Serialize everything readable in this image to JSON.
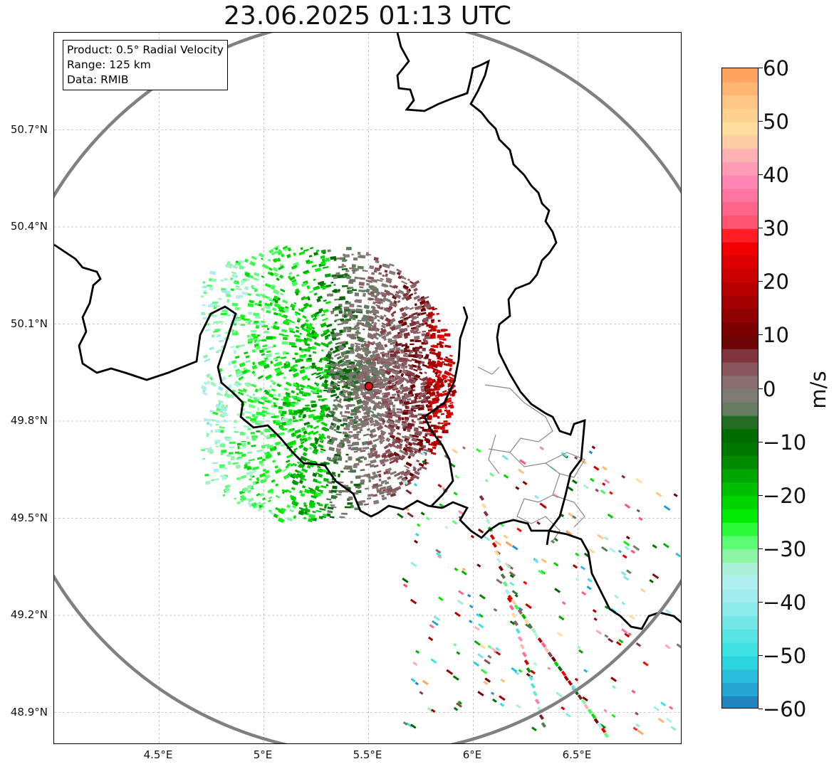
{
  "title": "23.06.2025 01:13 UTC",
  "info": {
    "product": "Product: 0.5° Radial Velocity",
    "range": "Range: 125 km",
    "source": "Data: RMIB"
  },
  "axes": {
    "lat_labels": [
      "50.7°N",
      "50.4°N",
      "50.1°N",
      "49.8°N",
      "49.5°N",
      "49.2°N",
      "48.9°N"
    ],
    "lon_labels": [
      "4.5°E",
      "5°E",
      "5.5°E",
      "6°E",
      "6.5°E"
    ]
  },
  "colorbar": {
    "unit": "m/s",
    "min": -60,
    "max": 60,
    "tick_labels": [
      "60",
      "50",
      "40",
      "30",
      "20",
      "10",
      "0",
      "−10",
      "−20",
      "−30",
      "−40",
      "−50",
      "−60"
    ],
    "tick_values": [
      60,
      50,
      40,
      30,
      20,
      10,
      0,
      -10,
      -20,
      -30,
      -40,
      -50,
      -60
    ],
    "stops": [
      {
        "v": -60,
        "c": "#1f77b4"
      },
      {
        "v": -55,
        "c": "#26b3d9"
      },
      {
        "v": -50,
        "c": "#2ee0e0"
      },
      {
        "v": -45,
        "c": "#66e6e6"
      },
      {
        "v": -40,
        "c": "#99ebeb"
      },
      {
        "v": -35,
        "c": "#b8f0f0"
      },
      {
        "v": -32,
        "c": "#99f2b3"
      },
      {
        "v": -28,
        "c": "#4dff66"
      },
      {
        "v": -24,
        "c": "#00ee00"
      },
      {
        "v": -18,
        "c": "#00b800"
      },
      {
        "v": -12,
        "c": "#007a00"
      },
      {
        "v": -7,
        "c": "#006400"
      },
      {
        "v": -5,
        "c": "#5a7d5a"
      },
      {
        "v": 0,
        "c": "#8a7a7a"
      },
      {
        "v": 5,
        "c": "#8a4a55"
      },
      {
        "v": 9,
        "c": "#6b0000"
      },
      {
        "v": 18,
        "c": "#b00000"
      },
      {
        "v": 28,
        "c": "#ff0000"
      },
      {
        "v": 30,
        "c": "#ff4d66"
      },
      {
        "v": 38,
        "c": "#ff80b3"
      },
      {
        "v": 44,
        "c": "#ffb3b3"
      },
      {
        "v": 48,
        "c": "#ffe0a0"
      },
      {
        "v": 55,
        "c": "#ffc080"
      },
      {
        "v": 60,
        "c": "#ff9955"
      }
    ]
  },
  "map": {
    "radar_site": {
      "lon": 5.5,
      "lat": 49.914
    },
    "lon_range": [
      4.0,
      7.0
    ],
    "lat_range": [
      48.8,
      51.0
    ],
    "grid_lons": [
      4.5,
      5.0,
      5.5,
      6.0,
      6.5
    ],
    "grid_lats": [
      48.9,
      49.2,
      49.5,
      49.8,
      50.1,
      50.4,
      50.7
    ],
    "range_ring_color": "#808080",
    "border_color": "#000000"
  }
}
